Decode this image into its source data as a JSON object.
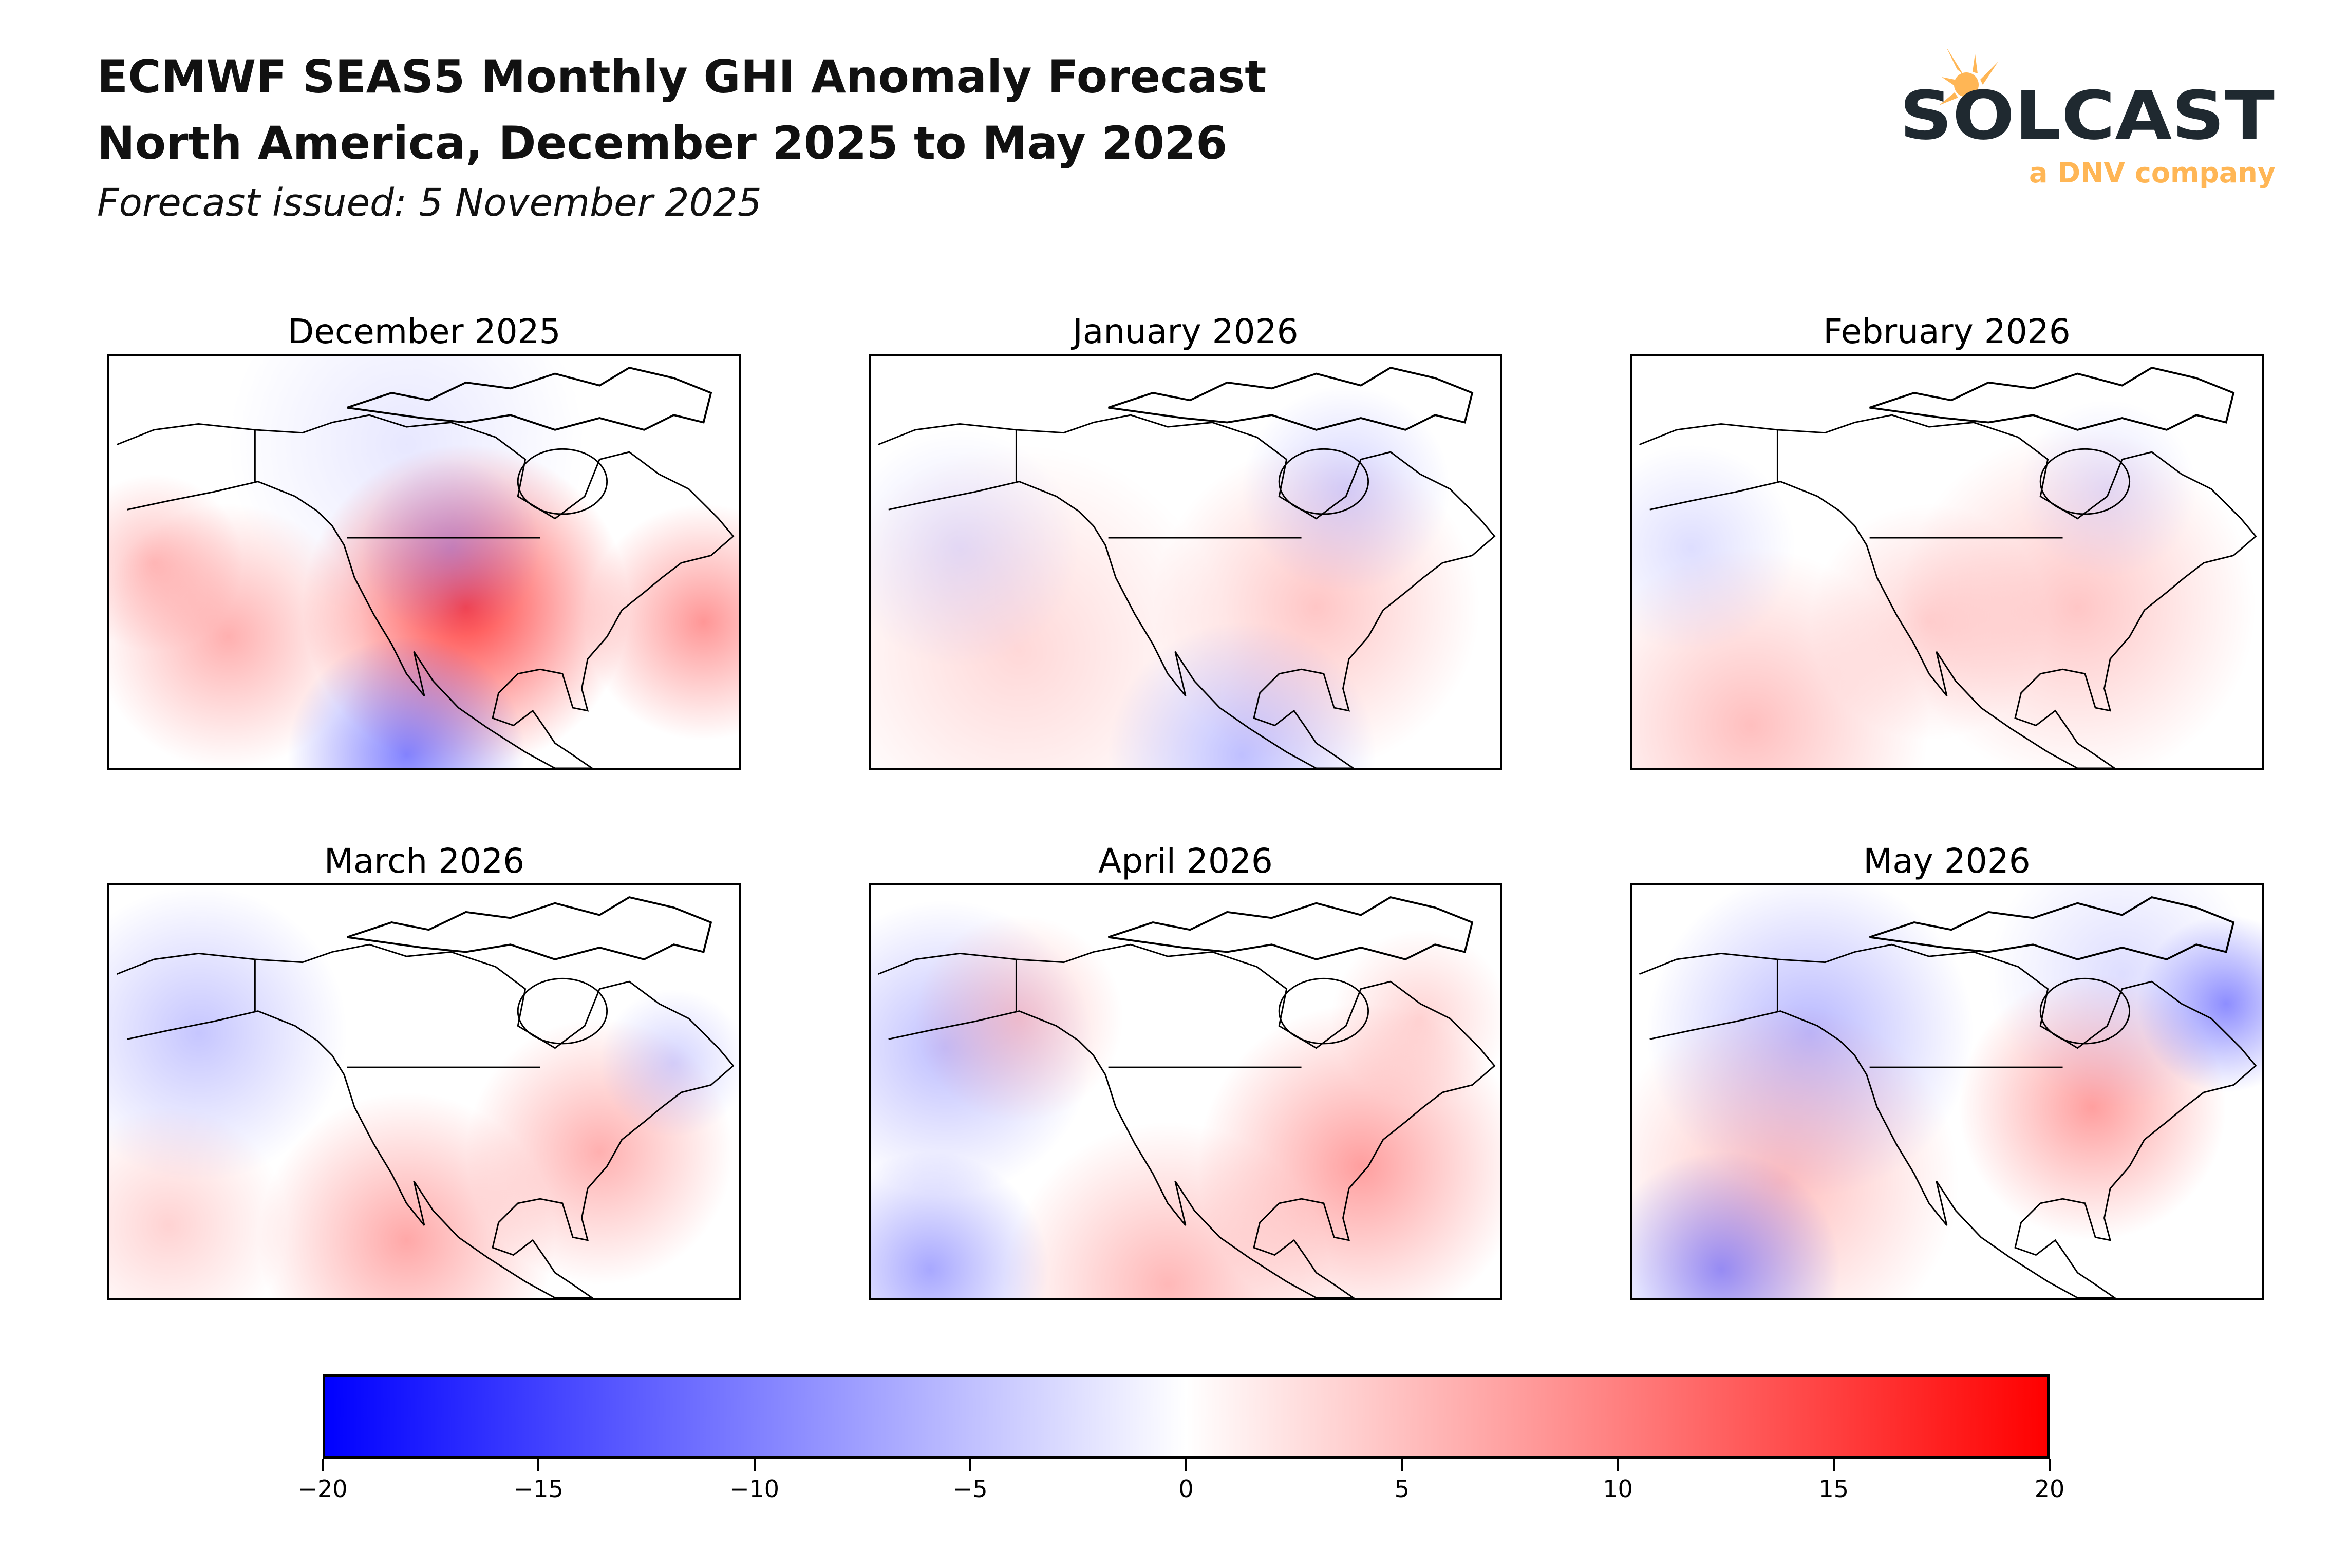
{
  "header": {
    "title_line1": "ECMWF SEAS5 Monthly GHI Anomaly Forecast",
    "title_line2": "North America, December 2025 to May 2026",
    "subtitle": "Forecast issued: 5 November 2025"
  },
  "logo": {
    "brand": "SOLCAST",
    "tagline": "a DNV company",
    "brand_color": "#1f2930",
    "accent_color": "#ffb655"
  },
  "chart_data": {
    "type": "heatmap",
    "panels": [
      {
        "title": "December 2025"
      },
      {
        "title": "January 2026"
      },
      {
        "title": "February 2026"
      },
      {
        "title": "March 2026"
      },
      {
        "title": "April 2026"
      },
      {
        "title": "May 2026"
      }
    ],
    "colorbar": {
      "range": [
        -20,
        20
      ],
      "ticks": [
        -20,
        -15,
        -10,
        -5,
        0,
        5,
        10,
        15,
        20
      ],
      "tick_labels": [
        "−20",
        "−15",
        "−10",
        "−5",
        "0",
        "5",
        "10",
        "15",
        "20"
      ],
      "colormap": "bwr",
      "low_color": "#0000ff",
      "mid_color": "#ffffff",
      "high_color": "#ff0000",
      "orientation": "horizontal"
    }
  }
}
